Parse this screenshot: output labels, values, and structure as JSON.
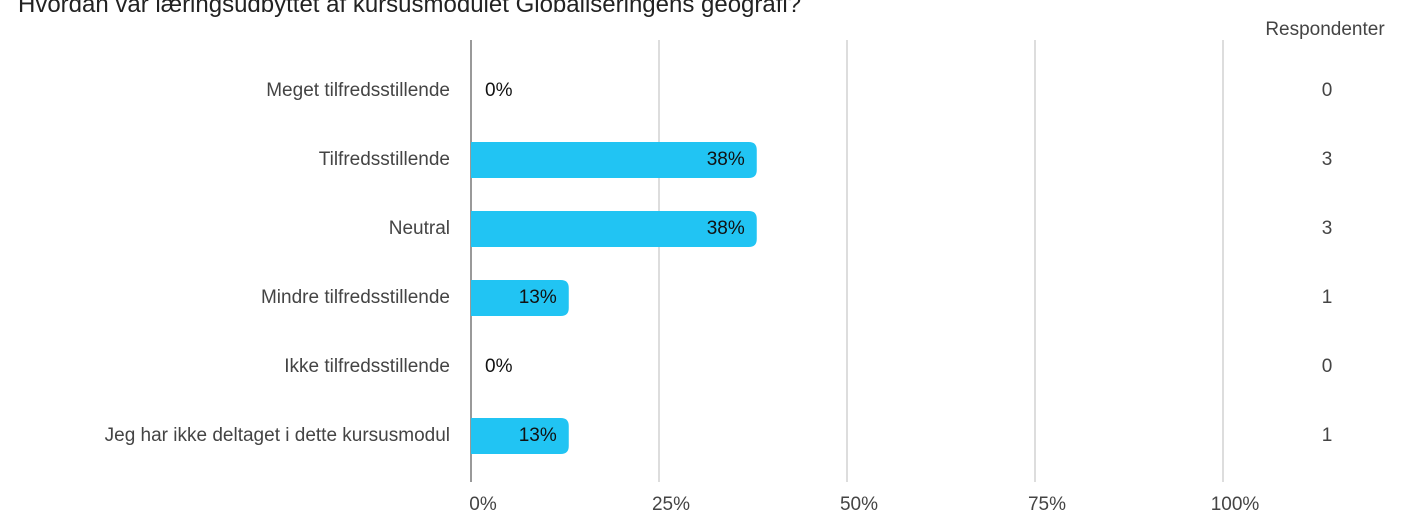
{
  "chart_data": {
    "type": "bar",
    "orientation": "horizontal",
    "title": "Hvordan var læringsudbyttet af kursusmodulet Globaliseringens geografi?",
    "categories": [
      "Meget tilfredsstillende",
      "Tilfredsstillende",
      "Neutral",
      "Mindre tilfredsstillende",
      "Ikke tilfredsstillende",
      "Jeg har ikke deltaget i dette kursusmodul"
    ],
    "values": [
      0,
      38,
      38,
      13,
      0,
      13
    ],
    "value_labels": [
      "0%",
      "38%",
      "38%",
      "13%",
      "0%",
      "13%"
    ],
    "color": "#21c4f3",
    "xlim": [
      0,
      100
    ],
    "xticks": [
      {
        "value": 0,
        "label": "0%"
      },
      {
        "value": 25,
        "label": "25%"
      },
      {
        "value": 50,
        "label": "50%"
      },
      {
        "value": 75,
        "label": "75%"
      },
      {
        "value": 100,
        "label": "100%"
      }
    ],
    "grid": true,
    "respondents": {
      "label": "Respondenter",
      "values": [
        0,
        3,
        3,
        1,
        0,
        1
      ]
    }
  }
}
